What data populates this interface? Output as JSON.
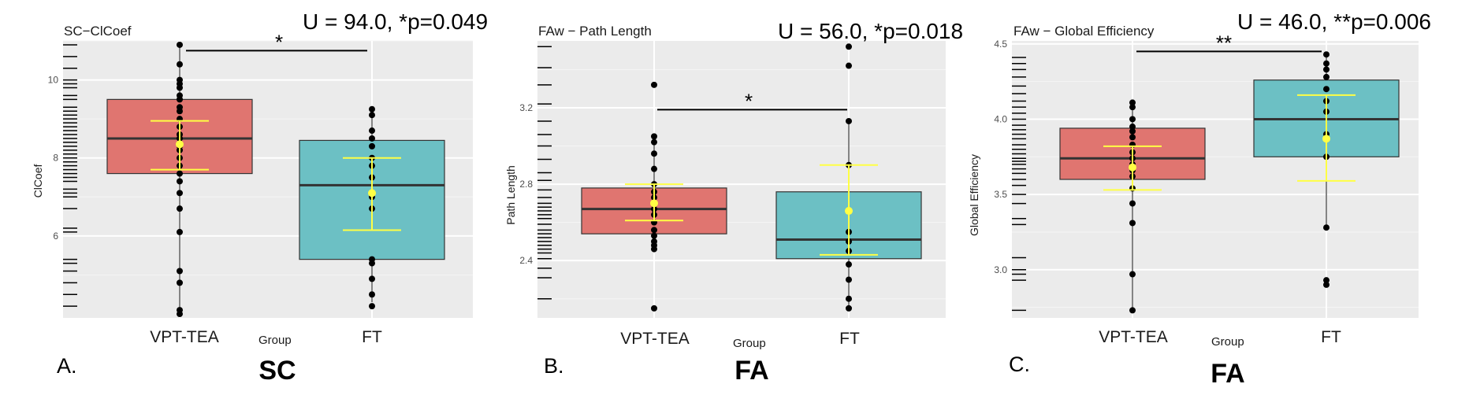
{
  "figure": {
    "panels": [
      {
        "letter": "A.",
        "modality": "SC",
        "title": "SC−ClCoef",
        "stat_text": "U = 94.0, *p=0.049",
        "sig_text": "*",
        "ylabel": "ClCoef",
        "xlabel": "Group"
      },
      {
        "letter": "B.",
        "modality": "FA",
        "title": "FAw − Path Length",
        "stat_text": "U = 56.0, *p=0.018",
        "sig_text": "*",
        "ylabel": "Path Length",
        "xlabel": "Group"
      },
      {
        "letter": "C.",
        "modality": "FA",
        "title": "FAw − Global Efficiency",
        "stat_text": "U = 46.0, **p=0.006",
        "sig_text": "**",
        "ylabel": "Global Efficiency",
        "xlabel": "Group"
      }
    ]
  },
  "chart_data": [
    {
      "type": "box",
      "title": "SC−ClCoef",
      "xlabel": "Group",
      "ylabel": "ClCoef",
      "categories": [
        "VPT-TEA",
        "FT"
      ],
      "ylim": [
        3.9,
        11.0
      ],
      "yticks": [
        6,
        8,
        10
      ],
      "grid": true,
      "groups": [
        {
          "name": "VPT-TEA",
          "color": "#e07570",
          "q1": 7.6,
          "median": 8.5,
          "q3": 9.5,
          "whisker_low": 4.0,
          "whisker_high": 10.9,
          "mean": 8.35,
          "mean_ci": [
            7.7,
            8.95
          ],
          "points": [
            4.1,
            4.0,
            4.8,
            5.1,
            6.1,
            6.7,
            7.1,
            7.4,
            7.6,
            7.8,
            8.0,
            8.2,
            8.3,
            8.5,
            8.6,
            8.8,
            9.0,
            9.2,
            9.3,
            9.5,
            9.6,
            9.8,
            9.9,
            10.0,
            10.4,
            10.9
          ]
        },
        {
          "name": "FT",
          "color": "#6cc0c4",
          "q1": 5.4,
          "median": 7.3,
          "q3": 8.45,
          "whisker_low": 4.3,
          "whisker_high": 9.25,
          "mean": 7.1,
          "mean_ci": [
            6.15,
            8.0
          ],
          "points": [
            4.2,
            4.5,
            4.9,
            5.3,
            5.4,
            6.7,
            7.0,
            7.5,
            7.8,
            8.0,
            8.3,
            8.5,
            8.7,
            9.1,
            9.25
          ]
        }
      ],
      "rug": [
        4.2,
        4.5,
        4.8,
        5.1,
        5.3,
        5.4,
        6.1,
        6.2,
        6.7,
        7.0,
        7.1,
        7.2,
        7.4,
        7.5,
        7.6,
        7.7,
        7.8,
        7.9,
        8.0,
        8.1,
        8.2,
        8.3,
        8.4,
        8.5,
        8.6,
        8.7,
        8.8,
        8.9,
        9.0,
        9.1,
        9.2,
        9.3,
        9.5,
        9.6,
        9.8,
        9.9,
        10.0,
        10.3,
        10.6,
        10.9
      ],
      "significance": {
        "label": "*",
        "y": 10.75
      },
      "annotation": "U = 94.0, *p=0.049"
    },
    {
      "type": "box",
      "title": "FAw − Path Length",
      "xlabel": "Group",
      "ylabel": "Path Length",
      "categories": [
        "VPT-TEA",
        "FT"
      ],
      "ylim": [
        2.1,
        3.55
      ],
      "yticks": [
        2.4,
        2.8,
        3.2
      ],
      "grid": true,
      "groups": [
        {
          "name": "VPT-TEA",
          "color": "#e07570",
          "q1": 2.54,
          "median": 2.67,
          "q3": 2.78,
          "whisker_low": 2.46,
          "whisker_high": 3.05,
          "mean": 2.7,
          "mean_ci": [
            2.61,
            2.8
          ],
          "points": [
            2.15,
            2.46,
            2.48,
            2.5,
            2.53,
            2.56,
            2.6,
            2.64,
            2.67,
            2.7,
            2.73,
            2.76,
            2.8,
            2.88,
            2.96,
            3.02,
            3.05,
            3.32
          ]
        },
        {
          "name": "FT",
          "color": "#6cc0c4",
          "q1": 2.41,
          "median": 2.51,
          "q3": 2.76,
          "whisker_low": 2.15,
          "whisker_high": 3.13,
          "mean": 2.66,
          "mean_ci": [
            2.43,
            2.9
          ],
          "points": [
            2.15,
            2.2,
            2.3,
            2.38,
            2.45,
            2.5,
            2.55,
            2.9,
            3.13,
            3.42,
            3.52
          ]
        }
      ],
      "rug": [
        2.2,
        2.31,
        2.36,
        2.41,
        2.44,
        2.46,
        2.48,
        2.5,
        2.52,
        2.54,
        2.56,
        2.59,
        2.62,
        2.64,
        2.66,
        2.68,
        2.7,
        2.73,
        2.77,
        2.82,
        2.86,
        2.93,
        3.0,
        3.06,
        3.13,
        3.22,
        3.32,
        3.41,
        3.52
      ],
      "significance": {
        "label": "*",
        "y": 3.19
      },
      "annotation": "U = 56.0, *p=0.018"
    },
    {
      "type": "box",
      "title": "FAw − Global Efficiency",
      "xlabel": "Group",
      "ylabel": "Global Efficiency",
      "categories": [
        "VPT-TEA",
        "FT"
      ],
      "ylim": [
        2.68,
        4.52
      ],
      "yticks": [
        3.0,
        3.5,
        4.0,
        4.5
      ],
      "grid": true,
      "groups": [
        {
          "name": "VPT-TEA",
          "color": "#e07570",
          "q1": 3.6,
          "median": 3.74,
          "q3": 3.94,
          "whisker_low": 2.73,
          "whisker_high": 4.11,
          "mean": 3.68,
          "mean_ci": [
            3.53,
            3.82
          ],
          "points": [
            2.73,
            2.97,
            3.31,
            3.44,
            3.54,
            3.62,
            3.66,
            3.7,
            3.74,
            3.78,
            3.83,
            3.88,
            3.92,
            3.95,
            4.0,
            4.08,
            4.11
          ]
        },
        {
          "name": "FT",
          "color": "#6cc0c4",
          "q1": 3.75,
          "median": 4.0,
          "q3": 4.26,
          "whisker_low": 3.28,
          "whisker_high": 4.43,
          "mean": 3.87,
          "mean_ci": [
            3.59,
            4.16
          ],
          "points": [
            2.9,
            2.93,
            3.28,
            3.75,
            3.9,
            4.05,
            4.12,
            4.2,
            4.28,
            4.33,
            4.37,
            4.43
          ]
        }
      ],
      "rug": [
        2.73,
        2.93,
        2.97,
        3.0,
        3.08,
        3.3,
        3.34,
        3.44,
        3.5,
        3.56,
        3.6,
        3.64,
        3.67,
        3.7,
        3.72,
        3.74,
        3.77,
        3.8,
        3.83,
        3.87,
        3.9,
        3.93,
        3.96,
        4.0,
        4.04,
        4.08,
        4.12,
        4.17,
        4.22,
        4.28,
        4.33,
        4.37,
        4.41
      ],
      "significance": {
        "label": "**",
        "y": 4.45
      },
      "annotation": "U = 46.0, **p=0.006"
    }
  ]
}
